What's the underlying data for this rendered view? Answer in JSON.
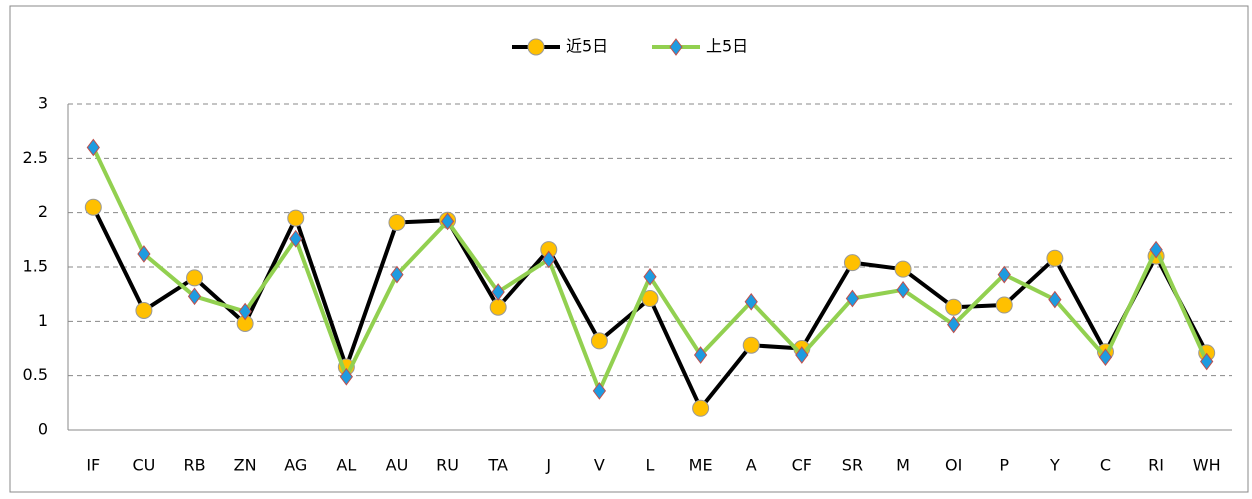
{
  "chart_data": {
    "type": "line",
    "categories": [
      "IF",
      "CU",
      "RB",
      "ZN",
      "AG",
      "AL",
      "AU",
      "RU",
      "TA",
      "J",
      "V",
      "L",
      "ME",
      "A",
      "CF",
      "SR",
      "M",
      "OI",
      "P",
      "Y",
      "C",
      "RI",
      "WH"
    ],
    "series": [
      {
        "name": "近5日",
        "color": "#000000",
        "marker": "circle",
        "marker_color": "#ffc000",
        "values": [
          2.05,
          1.1,
          1.4,
          0.98,
          1.95,
          0.58,
          1.91,
          1.93,
          1.13,
          1.66,
          0.82,
          1.21,
          0.2,
          0.78,
          0.75,
          1.54,
          1.48,
          1.13,
          1.15,
          1.58,
          0.72,
          1.6,
          0.71
        ]
      },
      {
        "name": "上5日",
        "color": "#92d050",
        "marker": "diamond",
        "marker_color": "#1e9be0",
        "values": [
          2.6,
          1.62,
          1.23,
          1.09,
          1.76,
          0.49,
          1.43,
          1.92,
          1.27,
          1.57,
          0.36,
          1.41,
          0.69,
          1.18,
          0.69,
          1.21,
          1.29,
          0.97,
          1.43,
          1.2,
          0.67,
          1.66,
          0.63
        ]
      }
    ],
    "ylim": [
      0,
      3
    ],
    "yticks": [
      0,
      {
        "value": 0.5,
        "label": "0.5"
      },
      1,
      {
        "value": 1.5,
        "label": "1.5"
      },
      2,
      {
        "value": 2.5,
        "label": "2.5"
      },
      3
    ],
    "grid": true,
    "legend": "top"
  }
}
